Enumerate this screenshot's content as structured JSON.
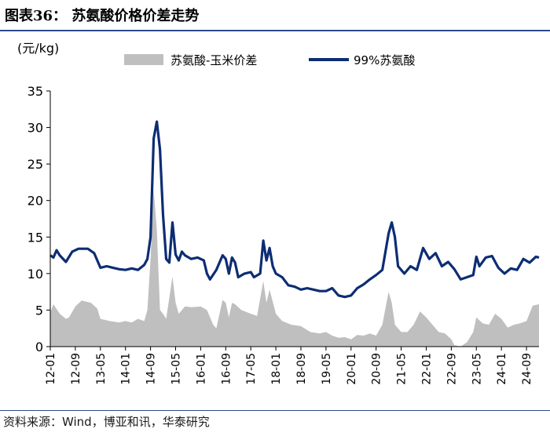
{
  "title": "图表36：  苏氨酸价格价差走势",
  "source": "资料来源：Wind，博亚和讯，华泰研究",
  "chart_data": {
    "type": "line",
    "unit": "(元/kg)",
    "ylim": [
      0,
      35
    ],
    "yticks": [
      0,
      5,
      10,
      15,
      20,
      25,
      30,
      35
    ],
    "x_range": [
      "2012-01",
      "2025-01"
    ],
    "xticks": [
      "12-01",
      "12-09",
      "13-05",
      "14-01",
      "14-09",
      "15-05",
      "16-01",
      "16-09",
      "17-05",
      "18-01",
      "18-09",
      "19-05",
      "20-01",
      "20-09",
      "21-05",
      "22-01",
      "22-09",
      "23-05",
      "24-01",
      "24-09"
    ],
    "legend_position": "top",
    "grid": false,
    "series": [
      {
        "name": "苏氨酸-玉米价差",
        "render": "area",
        "color": "#bfbfbf",
        "points": [
          [
            "2012-01",
            4.7
          ],
          [
            "2012-02",
            5.8
          ],
          [
            "2012-04",
            4.5
          ],
          [
            "2012-06",
            3.8
          ],
          [
            "2012-07",
            4.0
          ],
          [
            "2012-09",
            5.5
          ],
          [
            "2012-11",
            6.3
          ],
          [
            "2013-02",
            6.0
          ],
          [
            "2013-04",
            5.2
          ],
          [
            "2013-05",
            3.8
          ],
          [
            "2013-08",
            3.5
          ],
          [
            "2013-11",
            3.3
          ],
          [
            "2014-01",
            3.5
          ],
          [
            "2014-03",
            3.3
          ],
          [
            "2014-05",
            3.8
          ],
          [
            "2014-07",
            3.5
          ],
          [
            "2014-08",
            5.0
          ],
          [
            "2014-09",
            12.0
          ],
          [
            "2014-10",
            21.5
          ],
          [
            "2014-11",
            16.0
          ],
          [
            "2014-12",
            5.0
          ],
          [
            "2015-01",
            4.5
          ],
          [
            "2015-02",
            3.8
          ],
          [
            "2015-04",
            9.6
          ],
          [
            "2015-05",
            6.0
          ],
          [
            "2015-06",
            4.5
          ],
          [
            "2015-08",
            5.5
          ],
          [
            "2015-10",
            5.4
          ],
          [
            "2016-01",
            5.5
          ],
          [
            "2016-03",
            5.0
          ],
          [
            "2016-05",
            3.0
          ],
          [
            "2016-06",
            2.5
          ],
          [
            "2016-08",
            6.4
          ],
          [
            "2016-09",
            6.0
          ],
          [
            "2016-10",
            4.0
          ],
          [
            "2016-11",
            6.0
          ],
          [
            "2016-12",
            5.8
          ],
          [
            "2017-02",
            5.0
          ],
          [
            "2017-05",
            4.5
          ],
          [
            "2017-07",
            4.2
          ],
          [
            "2017-09",
            9.0
          ],
          [
            "2017-10",
            6.0
          ],
          [
            "2017-11",
            7.8
          ],
          [
            "2018-01",
            4.5
          ],
          [
            "2018-03",
            3.5
          ],
          [
            "2018-06",
            3.0
          ],
          [
            "2018-09",
            2.8
          ],
          [
            "2018-12",
            2.0
          ],
          [
            "2019-03",
            1.8
          ],
          [
            "2019-05",
            2.0
          ],
          [
            "2019-07",
            1.5
          ],
          [
            "2019-09",
            1.2
          ],
          [
            "2019-11",
            1.3
          ],
          [
            "2020-01",
            1.0
          ],
          [
            "2020-03",
            1.6
          ],
          [
            "2020-05",
            1.5
          ],
          [
            "2020-07",
            1.8
          ],
          [
            "2020-09",
            1.5
          ],
          [
            "2020-11",
            3.0
          ],
          [
            "2021-01",
            7.5
          ],
          [
            "2021-02",
            6.0
          ],
          [
            "2021-03",
            3.0
          ],
          [
            "2021-05",
            2.0
          ],
          [
            "2021-07",
            2.0
          ],
          [
            "2021-09",
            3.0
          ],
          [
            "2021-11",
            4.8
          ],
          [
            "2022-01",
            4.0
          ],
          [
            "2022-03",
            3.0
          ],
          [
            "2022-05",
            2.0
          ],
          [
            "2022-07",
            1.8
          ],
          [
            "2022-09",
            1.0
          ],
          [
            "2022-10",
            0.2
          ],
          [
            "2022-12",
            0.0
          ],
          [
            "2023-02",
            0.6
          ],
          [
            "2023-04",
            2.0
          ],
          [
            "2023-05",
            4.0
          ],
          [
            "2023-07",
            3.2
          ],
          [
            "2023-09",
            3.0
          ],
          [
            "2023-11",
            4.5
          ],
          [
            "2024-01",
            3.8
          ],
          [
            "2024-03",
            2.6
          ],
          [
            "2024-05",
            3.0
          ],
          [
            "2024-07",
            3.2
          ],
          [
            "2024-09",
            3.5
          ],
          [
            "2024-11",
            5.6
          ],
          [
            "2025-01",
            5.8
          ]
        ]
      },
      {
        "name": "99%苏氨酸",
        "render": "line",
        "color": "#0d2d73",
        "points": [
          [
            "2012-01",
            12.5
          ],
          [
            "2012-02",
            12.2
          ],
          [
            "2012-03",
            13.2
          ],
          [
            "2012-04",
            12.5
          ],
          [
            "2012-06",
            11.6
          ],
          [
            "2012-08",
            13.0
          ],
          [
            "2012-10",
            13.4
          ],
          [
            "2013-01",
            13.4
          ],
          [
            "2013-03",
            12.8
          ],
          [
            "2013-05",
            10.8
          ],
          [
            "2013-07",
            11.0
          ],
          [
            "2013-09",
            10.8
          ],
          [
            "2013-11",
            10.6
          ],
          [
            "2014-01",
            10.5
          ],
          [
            "2014-03",
            10.7
          ],
          [
            "2014-05",
            10.5
          ],
          [
            "2014-07",
            11.2
          ],
          [
            "2014-08",
            12.0
          ],
          [
            "2014-09",
            15.0
          ],
          [
            "2014-10",
            28.5
          ],
          [
            "2014-11",
            30.8
          ],
          [
            "2014-12",
            27.0
          ],
          [
            "2015-01",
            18.0
          ],
          [
            "2015-02",
            12.0
          ],
          [
            "2015-03",
            11.5
          ],
          [
            "2015-04",
            17.0
          ],
          [
            "2015-05",
            12.6
          ],
          [
            "2015-06",
            11.8
          ],
          [
            "2015-07",
            13.0
          ],
          [
            "2015-08",
            12.5
          ],
          [
            "2015-10",
            12.0
          ],
          [
            "2015-12",
            12.2
          ],
          [
            "2016-02",
            11.8
          ],
          [
            "2016-03",
            10.0
          ],
          [
            "2016-04",
            9.2
          ],
          [
            "2016-06",
            10.5
          ],
          [
            "2016-08",
            12.5
          ],
          [
            "2016-09",
            12.0
          ],
          [
            "2016-10",
            10.0
          ],
          [
            "2016-11",
            12.2
          ],
          [
            "2016-12",
            11.5
          ],
          [
            "2017-01",
            9.5
          ],
          [
            "2017-03",
            10.0
          ],
          [
            "2017-05",
            10.2
          ],
          [
            "2017-06",
            9.5
          ],
          [
            "2017-08",
            10.0
          ],
          [
            "2017-09",
            14.5
          ],
          [
            "2017-10",
            11.8
          ],
          [
            "2017-11",
            13.5
          ],
          [
            "2017-12",
            11.0
          ],
          [
            "2018-01",
            10.0
          ],
          [
            "2018-03",
            9.5
          ],
          [
            "2018-05",
            8.4
          ],
          [
            "2018-07",
            8.2
          ],
          [
            "2018-09",
            7.8
          ],
          [
            "2018-11",
            8.0
          ],
          [
            "2019-01",
            7.8
          ],
          [
            "2019-03",
            7.6
          ],
          [
            "2019-05",
            7.6
          ],
          [
            "2019-07",
            8.0
          ],
          [
            "2019-09",
            7.0
          ],
          [
            "2019-11",
            6.8
          ],
          [
            "2020-01",
            7.0
          ],
          [
            "2020-03",
            8.0
          ],
          [
            "2020-05",
            8.5
          ],
          [
            "2020-07",
            9.2
          ],
          [
            "2020-09",
            9.8
          ],
          [
            "2020-11",
            10.5
          ],
          [
            "2021-01",
            15.5
          ],
          [
            "2021-02",
            17.0
          ],
          [
            "2021-03",
            15.0
          ],
          [
            "2021-04",
            11.0
          ],
          [
            "2021-06",
            10.0
          ],
          [
            "2021-08",
            11.0
          ],
          [
            "2021-10",
            10.5
          ],
          [
            "2021-12",
            13.5
          ],
          [
            "2022-02",
            12.0
          ],
          [
            "2022-04",
            12.8
          ],
          [
            "2022-06",
            11.0
          ],
          [
            "2022-08",
            11.6
          ],
          [
            "2022-10",
            10.6
          ],
          [
            "2022-12",
            9.2
          ],
          [
            "2023-02",
            9.5
          ],
          [
            "2023-04",
            9.8
          ],
          [
            "2023-05",
            12.3
          ],
          [
            "2023-06",
            11.0
          ],
          [
            "2023-08",
            12.2
          ],
          [
            "2023-10",
            12.4
          ],
          [
            "2023-12",
            10.8
          ],
          [
            "2024-02",
            10.0
          ],
          [
            "2024-04",
            10.7
          ],
          [
            "2024-06",
            10.5
          ],
          [
            "2024-08",
            12.0
          ],
          [
            "2024-10",
            11.5
          ],
          [
            "2024-12",
            12.3
          ],
          [
            "2025-01",
            12.2
          ]
        ]
      }
    ]
  }
}
